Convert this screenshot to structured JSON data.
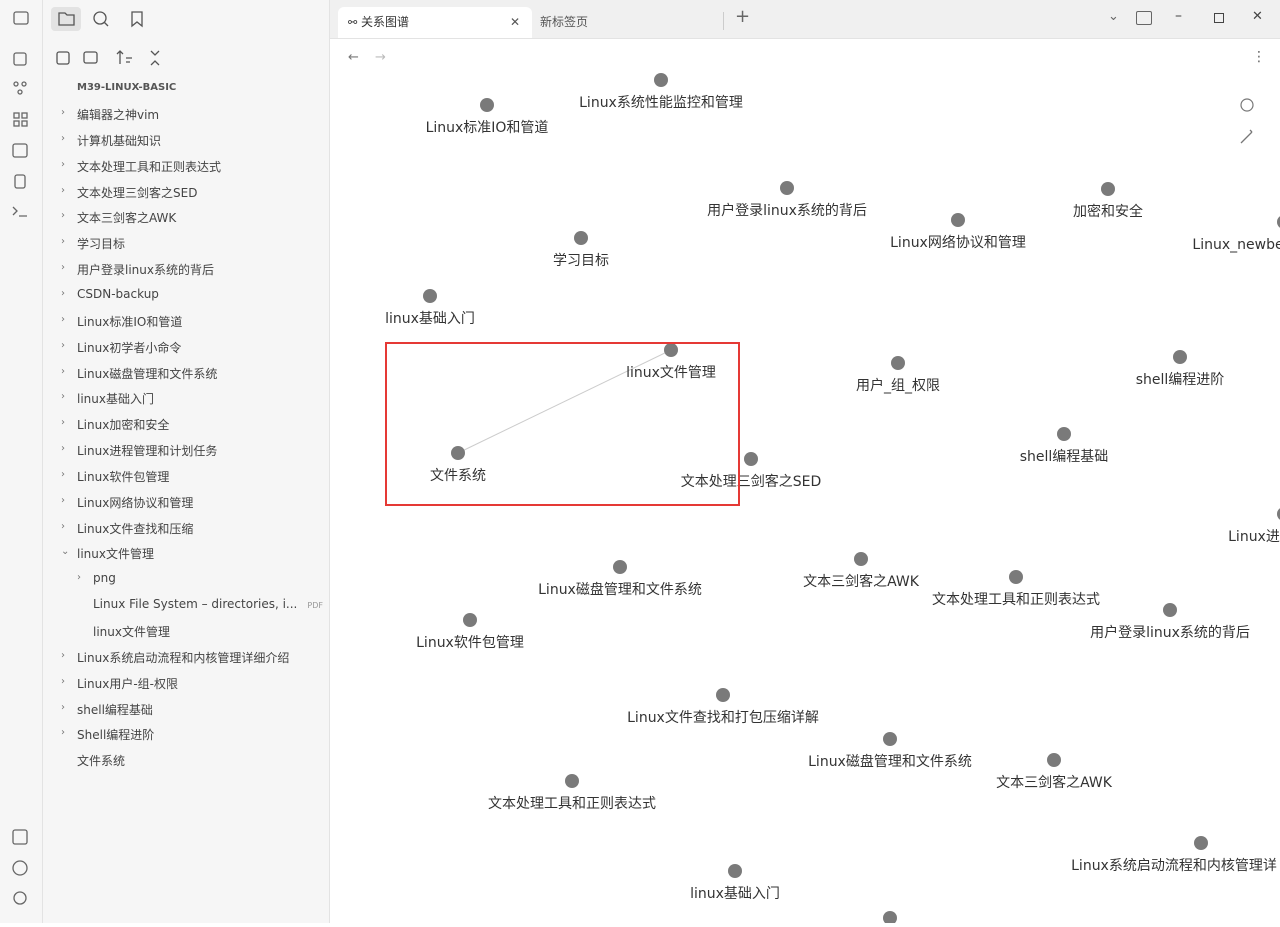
{
  "tabs": [
    "关系图谱",
    "新标签页"
  ],
  "sidebar": {
    "vault": "M39-LINUX-BASIC",
    "items": [
      {
        "label": "编辑器之神vim",
        "kind": "folder"
      },
      {
        "label": "计算机基础知识",
        "kind": "folder"
      },
      {
        "label": "文本处理工具和正则表达式",
        "kind": "folder"
      },
      {
        "label": "文本处理三剑客之SED",
        "kind": "folder"
      },
      {
        "label": "文本三剑客之AWK",
        "kind": "folder"
      },
      {
        "label": "学习目标",
        "kind": "folder"
      },
      {
        "label": "用户登录linux系统的背后",
        "kind": "folder"
      },
      {
        "label": "CSDN-backup",
        "kind": "folder"
      },
      {
        "label": "Linux标准IO和管道",
        "kind": "folder"
      },
      {
        "label": "Linux初学者小命令",
        "kind": "folder"
      },
      {
        "label": "Linux磁盘管理和文件系统",
        "kind": "folder"
      },
      {
        "label": "linux基础入门",
        "kind": "folder"
      },
      {
        "label": "Linux加密和安全",
        "kind": "folder"
      },
      {
        "label": "Linux进程管理和计划任务",
        "kind": "folder"
      },
      {
        "label": "Linux软件包管理",
        "kind": "folder"
      },
      {
        "label": "Linux网络协议和管理",
        "kind": "folder"
      },
      {
        "label": "Linux文件查找和压缩",
        "kind": "folder"
      },
      {
        "label": "linux文件管理",
        "kind": "folder",
        "open": true,
        "children": [
          {
            "label": "png",
            "kind": "folder"
          },
          {
            "label": "Linux File System – directories, i...",
            "kind": "file",
            "badge": "PDF"
          },
          {
            "label": "linux文件管理",
            "kind": "file"
          }
        ]
      },
      {
        "label": "Linux系统启动流程和内核管理详细介绍",
        "kind": "folder"
      },
      {
        "label": "Linux用户-组-权限",
        "kind": "folder"
      },
      {
        "label": "shell编程基础",
        "kind": "folder"
      },
      {
        "label": "Shell编程进阶",
        "kind": "folder"
      },
      {
        "label": "文件系统",
        "kind": "file"
      }
    ]
  },
  "graph": {
    "nodes": [
      "Linux系统性能监控和管理",
      "Linux标准IO和管道",
      "用户登录linux系统的背后",
      "加密和安全",
      "Linux网络协议和管理",
      "Linux_newbe",
      "学习目标",
      "linux基础入门",
      "linux文件管理",
      "用户_组_权限",
      "shell编程进阶",
      "文件系统",
      "文本处理三剑客之SED",
      "shell编程基础",
      "Linux进",
      "Linux磁盘管理和文件系统",
      "文本三剑客之AWK",
      "文本处理工具和正则表达式",
      "用户登录linux系统的背后",
      "Linux软件包管理",
      "Linux文件查找和打包压缩详解",
      "Linux磁盘管理和文件系统",
      "文本三剑客之AWK",
      "文本处理工具和正则表达式",
      "Linux系统启动流程和内核管理详",
      "linux基础入门"
    ]
  }
}
